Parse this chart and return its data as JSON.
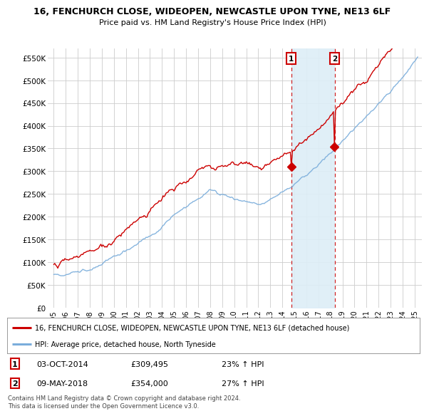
{
  "title": "16, FENCHURCH CLOSE, WIDEOPEN, NEWCASTLE UPON TYNE, NE13 6LF",
  "subtitle": "Price paid vs. HM Land Registry's House Price Index (HPI)",
  "ylim": [
    0,
    570000
  ],
  "yticks": [
    0,
    50000,
    100000,
    150000,
    200000,
    250000,
    300000,
    350000,
    400000,
    450000,
    500000,
    550000
  ],
  "ytick_labels": [
    "£0",
    "£50K",
    "£100K",
    "£150K",
    "£200K",
    "£250K",
    "£300K",
    "£350K",
    "£400K",
    "£450K",
    "£500K",
    "£550K"
  ],
  "hpi_color": "#7aaddb",
  "hpi_fill_color": "#ddeef7",
  "price_color": "#cc0000",
  "marker1_price": 309495,
  "marker2_price": 354000,
  "sale1_year": 2014.75,
  "sale2_year": 2018.36,
  "legend_property": "16, FENCHURCH CLOSE, WIDEOPEN, NEWCASTLE UPON TYNE, NE13 6LF (detached house)",
  "legend_hpi": "HPI: Average price, detached house, North Tyneside",
  "copyright": "Contains HM Land Registry data © Crown copyright and database right 2024.\nThis data is licensed under the Open Government Licence v3.0.",
  "background_color": "#ffffff",
  "grid_color": "#cccccc"
}
